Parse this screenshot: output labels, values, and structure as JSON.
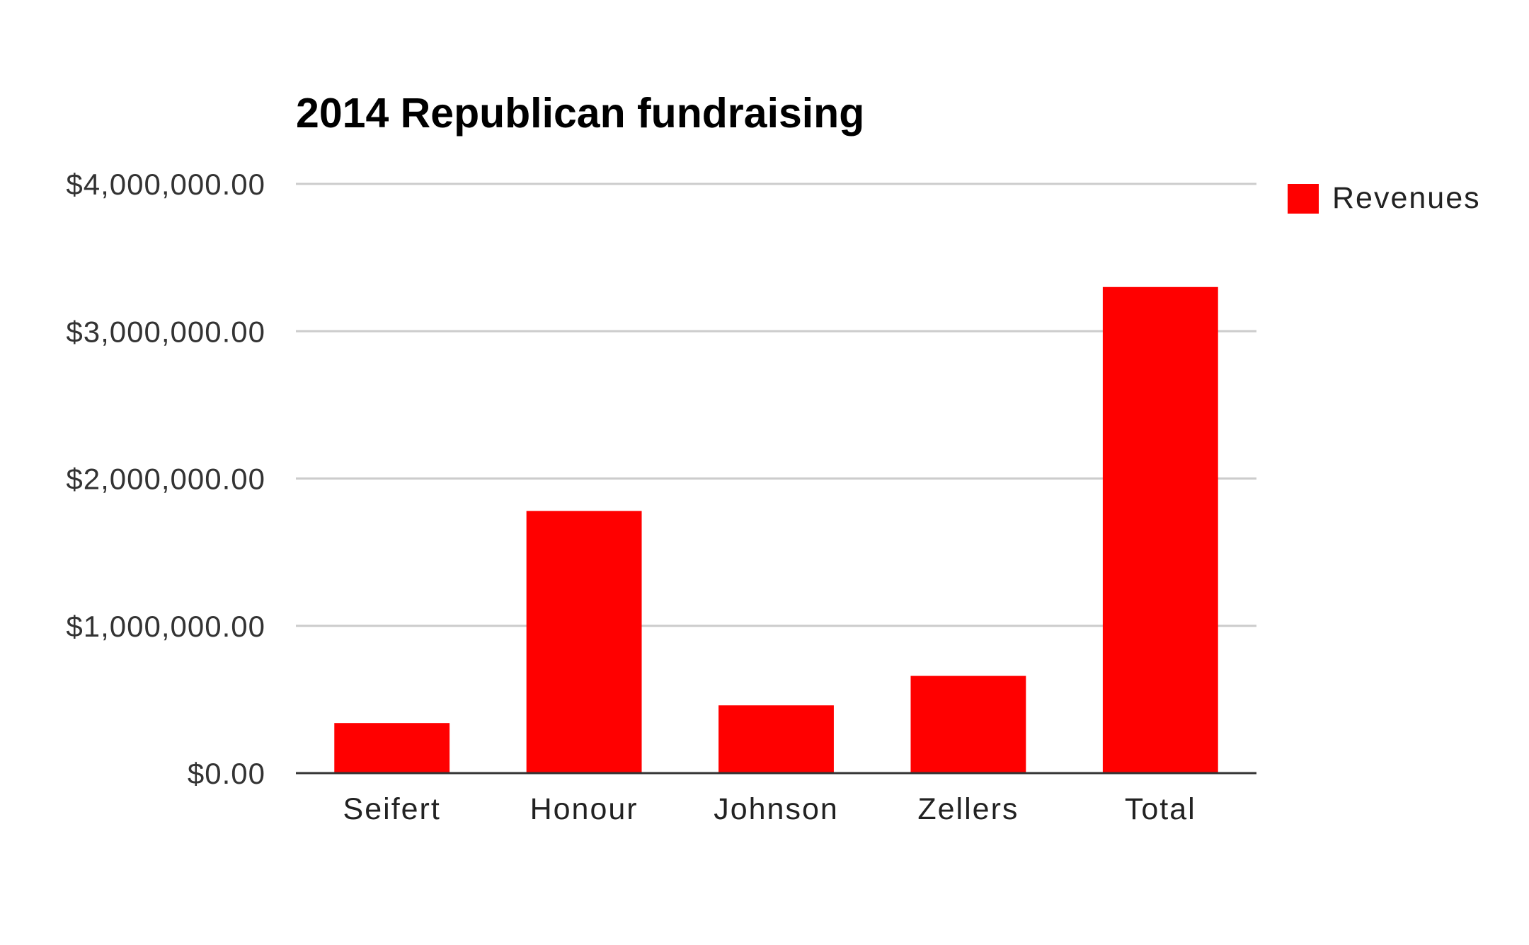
{
  "chart_data": {
    "type": "bar",
    "title": "2014 Republican fundraising",
    "xlabel": "",
    "ylabel": "",
    "categories": [
      "Seifert",
      "Honour",
      "Johnson",
      "Zellers",
      "Total"
    ],
    "series": [
      {
        "name": "Revenues",
        "color": "#ff0000",
        "values": [
          340000,
          1780000,
          460000,
          660000,
          3300000
        ]
      }
    ],
    "ylim": [
      0,
      4000000
    ],
    "yticks": [
      0,
      1000000,
      2000000,
      3000000,
      4000000
    ],
    "ytick_labels": [
      "$0.00",
      "$1,000,000.00",
      "$2,000,000.00",
      "$3,000,000.00",
      "$4,000,000.00"
    ],
    "grid": true,
    "legend_position": "right",
    "colors": {
      "bar": "#ff0000",
      "grid": "#cccccc",
      "axis": "#333333"
    }
  }
}
